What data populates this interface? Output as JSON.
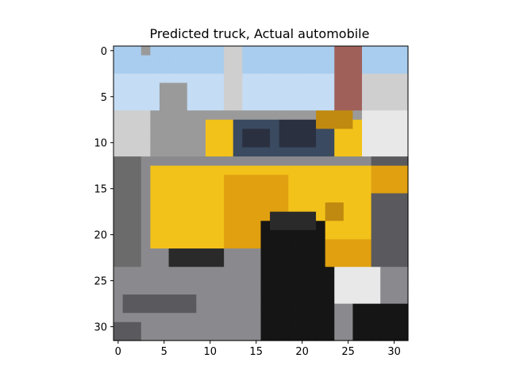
{
  "title": "Predicted truck, Actual automobile",
  "image": {
    "description_free": true,
    "grid_size": [
      32,
      32
    ],
    "palette": {
      "sky": "#a9cdee",
      "sky_light": "#c4dcf4",
      "building_gray": "#9a9a9a",
      "building_light": "#cfcfcf",
      "building_dark": "#6b6b6b",
      "brick": "#a0605a",
      "taxi_yellow": "#f2c21a",
      "taxi_orange": "#e0a010",
      "taxi_dark": "#c08a10",
      "window_dark": "#2a3040",
      "windshield": "#3a4a60",
      "tire": "#151515",
      "street": "#8a8a8e",
      "street_dark": "#5a5a5e",
      "shadow": "#2a2a2a",
      "white": "#e8e8e8"
    }
  },
  "axes": {
    "x_ticks": [
      "0",
      "5",
      "10",
      "15",
      "20",
      "25",
      "30"
    ],
    "y_ticks": [
      "0",
      "5",
      "10",
      "15",
      "20",
      "25",
      "30"
    ],
    "x_tick_values": [
      0,
      5,
      10,
      15,
      20,
      25,
      30
    ],
    "y_tick_values": [
      0,
      5,
      10,
      15,
      20,
      25,
      30
    ],
    "xlim": [
      -0.5,
      31.5
    ],
    "ylim": [
      31.5,
      -0.5
    ]
  }
}
